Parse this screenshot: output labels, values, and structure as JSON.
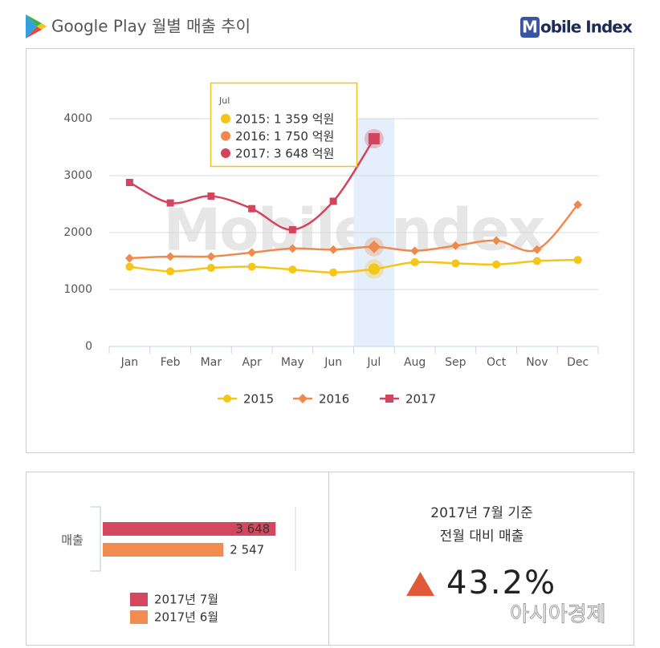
{
  "header": {
    "title": "Google Play 월별 매출 추이",
    "logo_initial": "M",
    "logo_rest": "obile Index"
  },
  "watermark": "MobileIndex",
  "source_watermark": "아시아경제",
  "chart_data": [
    {
      "type": "line",
      "categories": [
        "Jan",
        "Feb",
        "Mar",
        "Apr",
        "May",
        "Jun",
        "Jul",
        "Aug",
        "Sep",
        "Oct",
        "Nov",
        "Dec"
      ],
      "series": [
        {
          "name": "2015",
          "color": "#f5c518",
          "marker": "circle",
          "values": [
            1400,
            1320,
            1380,
            1400,
            1350,
            1300,
            1359,
            1480,
            1460,
            1440,
            1500,
            1520
          ]
        },
        {
          "name": "2016",
          "color": "#ef8a4f",
          "marker": "diamond",
          "values": [
            1550,
            1580,
            1580,
            1650,
            1720,
            1700,
            1750,
            1680,
            1770,
            1860,
            1700,
            2490
          ]
        },
        {
          "name": "2017",
          "color": "#d2455e",
          "marker": "square",
          "values": [
            2880,
            2520,
            2640,
            2420,
            2050,
            2550,
            3648,
            null,
            null,
            null,
            null,
            null
          ]
        }
      ],
      "ylim": [
        0,
        4000
      ],
      "yticks": [
        0,
        1000,
        2000,
        3000,
        4000
      ],
      "grid": true,
      "legend": "bottom",
      "tooltip": {
        "title": "Jul",
        "items": [
          "2015: 1 359 억원",
          "2016: 1 750 억원",
          "2017: 3 648 억원"
        ]
      }
    },
    {
      "type": "barh",
      "categories": [
        "매출"
      ],
      "series": [
        {
          "name": "2017년 7월",
          "color": "#d4485f",
          "values": [
            3648
          ],
          "value_labels": [
            "3 648"
          ]
        },
        {
          "name": "2017년 6월",
          "color": "#f28c50",
          "values": [
            2547
          ],
          "value_labels": [
            "2 547"
          ]
        }
      ],
      "xlim": [
        0,
        4000
      ],
      "legend": "bottom"
    }
  ],
  "summary": {
    "basis": "2017년  7월 기준",
    "subtitle": "전월 대비 매출",
    "change": "43.2%"
  }
}
